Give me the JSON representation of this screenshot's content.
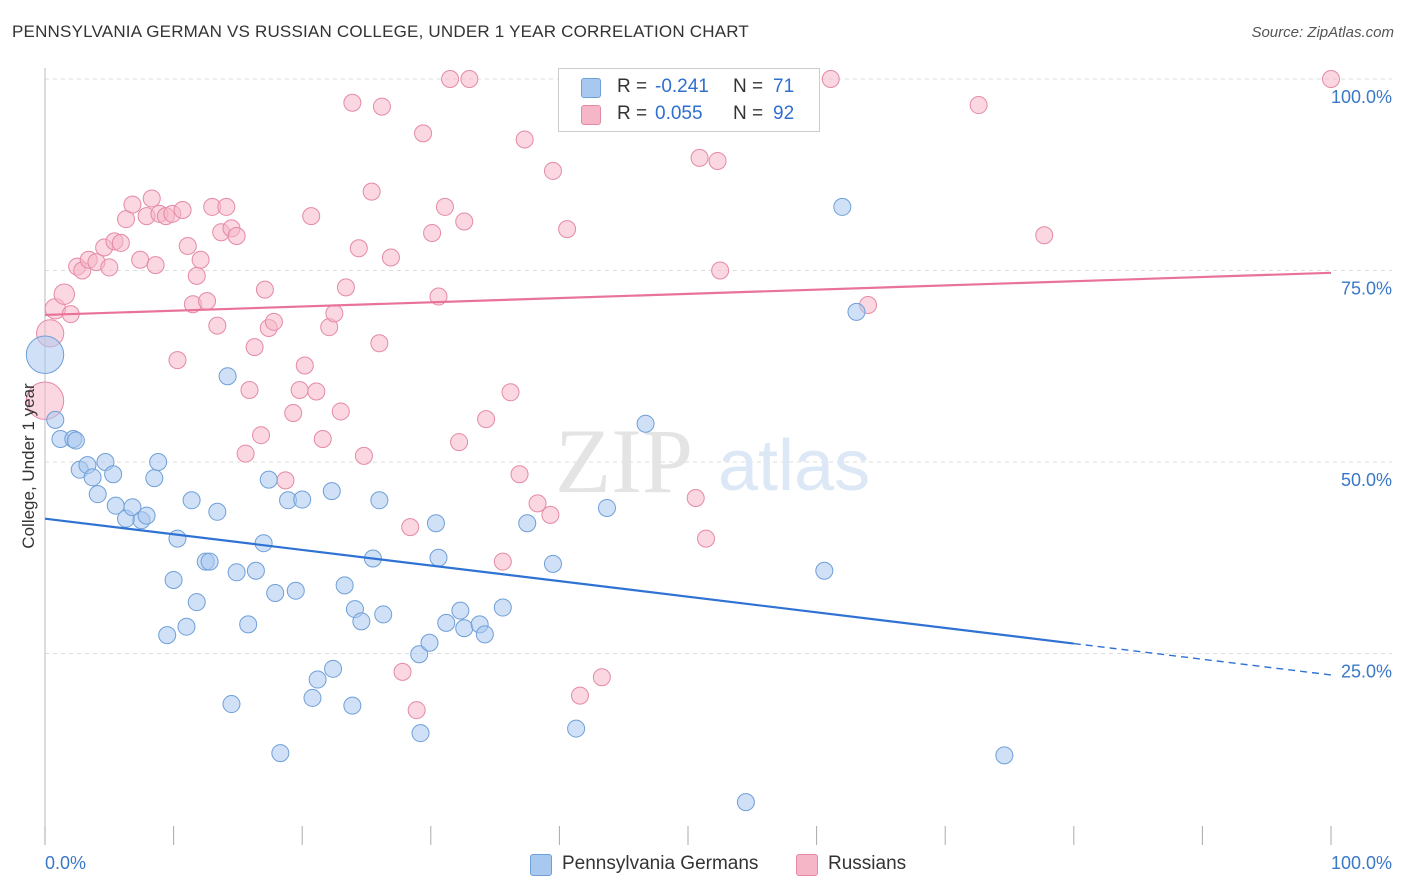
{
  "title": "PENNSYLVANIA GERMAN VS RUSSIAN COLLEGE, UNDER 1 YEAR CORRELATION CHART",
  "source": "Source: ZipAtlas.com",
  "watermark": {
    "zip": "ZIP",
    "atlas": "atlas"
  },
  "legend": {
    "r_label": "R =",
    "n_label": "N =",
    "rows": [
      {
        "r": "-0.241",
        "n": "71",
        "color": "#a9c8f0"
      },
      {
        "r": "0.055",
        "n": "92",
        "color": "#f5b6c8"
      }
    ]
  },
  "colors": {
    "blue_fill": "#a9c8f0",
    "blue_stroke": "#6f9fd8",
    "blue_line": "#2f72d4",
    "pink_fill": "#f5b6c8",
    "pink_stroke": "#e58aa6",
    "pink_line": "#e8729a",
    "axis_label": "#3a78c8",
    "grid": "#dcdcdc"
  },
  "chart_data": {
    "type": "scatter",
    "title": "PENNSYLVANIA GERMAN VS RUSSIAN COLLEGE, UNDER 1 YEAR CORRELATION CHART",
    "xlabel": "",
    "ylabel": "College, Under 1 year",
    "xlim": [
      0,
      100
    ],
    "ylim": [
      0,
      100
    ],
    "x_tick_labels": [
      "0.0%",
      "100.0%"
    ],
    "y_tick_labels": [
      "25.0%",
      "50.0%",
      "75.0%",
      "100.0%"
    ],
    "y_ticks": [
      25,
      50,
      75,
      100
    ],
    "grid": true,
    "legend_position": "bottom",
    "series": [
      {
        "name": "Pennsylvania Germans",
        "R": -0.241,
        "N": 71,
        "trend": {
          "x0": 0,
          "y0": 42.6,
          "x1": 80,
          "y1": 26.3,
          "dashed_to": 100,
          "dashed_y": 22.2
        },
        "points": [
          [
            0.0,
            64.0,
            2.2
          ],
          [
            0.8,
            55.5,
            1
          ],
          [
            1.2,
            53.0,
            1
          ],
          [
            2.2,
            53.0,
            1
          ],
          [
            2.4,
            52.8,
            1
          ],
          [
            2.7,
            49.0,
            1
          ],
          [
            3.3,
            49.6,
            1
          ],
          [
            3.7,
            48.0,
            1
          ],
          [
            4.1,
            45.8,
            1
          ],
          [
            4.7,
            50.0,
            1
          ],
          [
            5.3,
            48.4,
            1
          ],
          [
            5.5,
            44.3,
            1
          ],
          [
            6.3,
            42.6,
            1
          ],
          [
            6.8,
            44.1,
            1
          ],
          [
            7.5,
            42.4,
            1
          ],
          [
            7.9,
            43.0,
            1
          ],
          [
            8.5,
            47.9,
            1
          ],
          [
            8.8,
            50.0,
            1
          ],
          [
            9.5,
            27.4,
            1
          ],
          [
            10.0,
            34.6,
            1
          ],
          [
            10.3,
            40.0,
            1
          ],
          [
            11.0,
            28.5,
            1
          ],
          [
            11.4,
            45.0,
            1
          ],
          [
            11.8,
            31.7,
            1
          ],
          [
            12.5,
            37.0,
            1
          ],
          [
            12.8,
            37.0,
            1
          ],
          [
            13.4,
            43.5,
            1
          ],
          [
            14.2,
            61.2,
            1
          ],
          [
            14.5,
            18.4,
            1
          ],
          [
            14.9,
            35.6,
            1
          ],
          [
            15.8,
            28.8,
            1
          ],
          [
            16.4,
            35.8,
            1
          ],
          [
            17.0,
            39.4,
            1
          ],
          [
            17.4,
            47.7,
            1
          ],
          [
            17.9,
            32.9,
            1
          ],
          [
            18.3,
            12.0,
            1
          ],
          [
            18.9,
            45.0,
            1
          ],
          [
            19.5,
            33.2,
            1
          ],
          [
            20.0,
            45.1,
            1
          ],
          [
            20.8,
            19.2,
            1
          ],
          [
            21.2,
            21.6,
            1
          ],
          [
            22.3,
            46.2,
            1
          ],
          [
            22.4,
            23.0,
            1
          ],
          [
            23.3,
            33.9,
            1
          ],
          [
            23.9,
            18.2,
            1
          ],
          [
            24.1,
            30.8,
            1
          ],
          [
            24.6,
            29.2,
            1
          ],
          [
            25.5,
            37.4,
            1
          ],
          [
            26.0,
            45.0,
            1
          ],
          [
            26.3,
            30.1,
            1
          ],
          [
            29.1,
            24.9,
            1
          ],
          [
            29.2,
            14.6,
            1
          ],
          [
            29.9,
            26.4,
            1
          ],
          [
            30.4,
            42.0,
            1
          ],
          [
            30.6,
            37.5,
            1
          ],
          [
            31.2,
            29.0,
            1
          ],
          [
            32.3,
            30.6,
            1
          ],
          [
            32.6,
            28.3,
            1
          ],
          [
            33.8,
            28.8,
            1
          ],
          [
            34.2,
            27.5,
            1
          ],
          [
            35.6,
            31.0,
            1
          ],
          [
            37.5,
            42.0,
            1
          ],
          [
            39.5,
            36.7,
            1
          ],
          [
            41.3,
            15.2,
            1
          ],
          [
            43.7,
            44.0,
            1
          ],
          [
            46.7,
            55.0,
            1
          ],
          [
            54.5,
            5.6,
            1
          ],
          [
            60.6,
            35.8,
            1
          ],
          [
            62.0,
            83.3,
            1
          ],
          [
            63.1,
            69.6,
            1
          ],
          [
            74.6,
            11.7,
            1
          ]
        ]
      },
      {
        "name": "Russians",
        "R": 0.055,
        "N": 92,
        "trend": {
          "x0": 0,
          "y0": 69.2,
          "x1": 100,
          "y1": 74.7
        },
        "points": [
          [
            0.0,
            58.0,
            2.2
          ],
          [
            0.4,
            66.8,
            1.6
          ],
          [
            0.8,
            70.0,
            1.2
          ],
          [
            1.5,
            71.9,
            1.2
          ],
          [
            2.0,
            69.3,
            1
          ],
          [
            2.5,
            75.5,
            1
          ],
          [
            2.9,
            75.0,
            1
          ],
          [
            3.4,
            76.4,
            1
          ],
          [
            4.0,
            76.1,
            1
          ],
          [
            4.6,
            78.0,
            1
          ],
          [
            5.0,
            75.4,
            1
          ],
          [
            5.4,
            78.8,
            1
          ],
          [
            5.9,
            78.6,
            1
          ],
          [
            6.3,
            81.7,
            1
          ],
          [
            6.8,
            83.6,
            1
          ],
          [
            7.4,
            76.4,
            1
          ],
          [
            7.9,
            82.1,
            1
          ],
          [
            8.3,
            84.4,
            1
          ],
          [
            8.6,
            75.7,
            1
          ],
          [
            8.9,
            82.4,
            1
          ],
          [
            9.4,
            82.1,
            1
          ],
          [
            9.9,
            82.4,
            1
          ],
          [
            10.3,
            63.3,
            1
          ],
          [
            10.7,
            82.9,
            1
          ],
          [
            11.1,
            78.2,
            1
          ],
          [
            11.5,
            70.6,
            1
          ],
          [
            11.8,
            74.3,
            1
          ],
          [
            12.1,
            76.4,
            1
          ],
          [
            12.6,
            71.0,
            1
          ],
          [
            13.0,
            83.3,
            1
          ],
          [
            13.4,
            67.8,
            1
          ],
          [
            13.7,
            80.0,
            1
          ],
          [
            14.1,
            83.3,
            1
          ],
          [
            14.5,
            80.5,
            1
          ],
          [
            14.9,
            79.5,
            1
          ],
          [
            15.6,
            51.1,
            1
          ],
          [
            15.9,
            59.4,
            1
          ],
          [
            16.3,
            65.0,
            1
          ],
          [
            16.8,
            53.5,
            1
          ],
          [
            17.1,
            72.5,
            1
          ],
          [
            17.4,
            67.5,
            1
          ],
          [
            17.8,
            68.3,
            1
          ],
          [
            18.7,
            47.6,
            1
          ],
          [
            19.3,
            56.4,
            1
          ],
          [
            19.8,
            59.4,
            1
          ],
          [
            20.2,
            62.6,
            1
          ],
          [
            20.7,
            82.1,
            1
          ],
          [
            21.1,
            59.2,
            1
          ],
          [
            21.6,
            53.0,
            1
          ],
          [
            22.1,
            67.6,
            1
          ],
          [
            22.5,
            69.4,
            1
          ],
          [
            23.0,
            56.6,
            1
          ],
          [
            23.4,
            72.8,
            1
          ],
          [
            23.9,
            96.9,
            1
          ],
          [
            24.4,
            77.9,
            1
          ],
          [
            24.8,
            50.8,
            1
          ],
          [
            25.4,
            85.3,
            1
          ],
          [
            26.0,
            65.5,
            1
          ],
          [
            26.2,
            96.4,
            1
          ],
          [
            26.9,
            76.7,
            1
          ],
          [
            27.8,
            22.6,
            1
          ],
          [
            28.4,
            41.5,
            1
          ],
          [
            28.9,
            17.6,
            1
          ],
          [
            29.4,
            92.9,
            1
          ],
          [
            30.1,
            79.9,
            1
          ],
          [
            30.6,
            71.6,
            1
          ],
          [
            31.1,
            83.3,
            1
          ],
          [
            31.5,
            100.0,
            1
          ],
          [
            32.2,
            52.6,
            1
          ],
          [
            32.6,
            81.4,
            1
          ],
          [
            33.0,
            100.0,
            1
          ],
          [
            34.3,
            55.6,
            1
          ],
          [
            35.6,
            37.0,
            1
          ],
          [
            36.2,
            59.1,
            1
          ],
          [
            36.9,
            48.4,
            1
          ],
          [
            37.3,
            92.1,
            1
          ],
          [
            38.3,
            44.6,
            1
          ],
          [
            39.3,
            43.1,
            1
          ],
          [
            39.5,
            88.0,
            1
          ],
          [
            40.6,
            80.4,
            1
          ],
          [
            41.6,
            19.5,
            1
          ],
          [
            43.3,
            21.9,
            1
          ],
          [
            46.4,
            100.0,
            1
          ],
          [
            50.6,
            45.3,
            1
          ],
          [
            50.9,
            89.7,
            1
          ],
          [
            51.4,
            40.0,
            1
          ],
          [
            52.3,
            89.3,
            1
          ],
          [
            52.5,
            75.0,
            1
          ],
          [
            59.3,
            100.0,
            1
          ],
          [
            61.1,
            100.0,
            1
          ],
          [
            64.0,
            70.5,
            1
          ],
          [
            72.6,
            96.6,
            1
          ],
          [
            77.7,
            79.6,
            1
          ],
          [
            100.0,
            100.0,
            1
          ]
        ]
      }
    ]
  }
}
